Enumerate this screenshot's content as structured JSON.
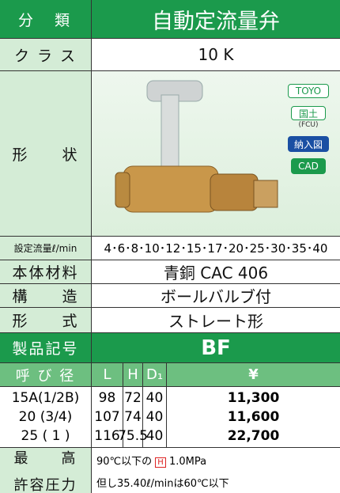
{
  "header": {
    "category_label": "分　類",
    "product_name": "自動定流量弁"
  },
  "class_row": {
    "label": "ク ラ ス",
    "value": "10 K"
  },
  "shape_row": {
    "label": "形　　状",
    "badges": [
      "TOYO",
      "国土",
      "(FCU)",
      "納入図",
      "CAD"
    ]
  },
  "flow_row": {
    "label": "設定流量ℓ/min",
    "value": "4･6･8･10･12･15･17･20･25･30･35･40"
  },
  "material_row": {
    "label": "本体材料",
    "value": "青銅 CAC 406"
  },
  "structure_row": {
    "label": "構　　造",
    "value": "ボールバルブ付"
  },
  "form_row": {
    "label": "形　　式",
    "value": "ストレート形"
  },
  "code_row": {
    "label": "製品記号",
    "value": "BF"
  },
  "table": {
    "header": [
      "呼 び 径",
      "L",
      "H",
      "D₁",
      "¥"
    ],
    "rows": [
      [
        "15A(1/2B)",
        98,
        72,
        40,
        "11,300"
      ],
      [
        "20 (3/4)",
        107,
        74,
        40,
        "11,600"
      ],
      [
        "25 ( 1 )",
        116,
        75.5,
        40,
        "22,700"
      ]
    ]
  },
  "pressure": {
    "label": [
      "最　　高",
      "許容圧力"
    ],
    "note1": [
      "90℃以下の",
      "H",
      "1.0MPa"
    ],
    "note2": "但し35.40ℓ/minは60℃以下"
  }
}
